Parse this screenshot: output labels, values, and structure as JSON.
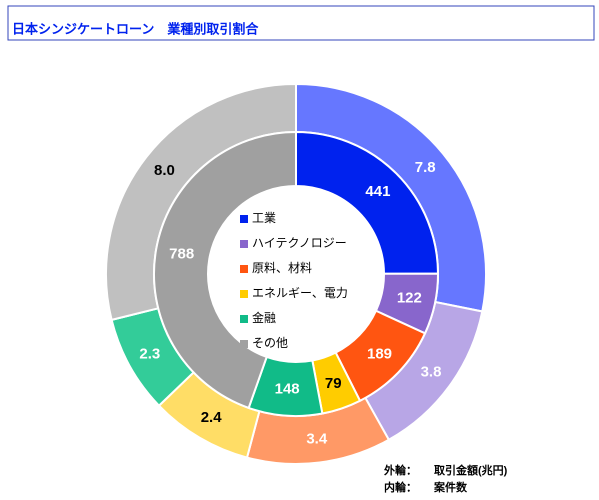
{
  "chart_data": {
    "type": "donut",
    "title": "日本シンジケートローン　業種別取引割合",
    "categories": [
      "工業",
      "ハイテクノロジー",
      "原料、材料",
      "エネルギー、電力",
      "金融",
      "その他"
    ],
    "series": [
      {
        "name": "外輪：",
        "measure": "取引金額(兆円)",
        "ring": "outer",
        "values": [
          7.8,
          3.8,
          3.4,
          2.4,
          2.3,
          8.0
        ],
        "value_labels": [
          "7.8",
          "3.8",
          "3.4",
          "2.4",
          "2.3",
          "8.0"
        ],
        "colors": [
          "#6677ff",
          "#b8a6e6",
          "#ff9966",
          "#ffdd66",
          "#33cc99",
          "#c0c0c0"
        ],
        "label_colors": [
          "#ffffff",
          "#ffffff",
          "#ffffff",
          "#000000",
          "#ffffff",
          "#000000"
        ]
      },
      {
        "name": "内輪：",
        "measure": "案件数",
        "ring": "inner",
        "values": [
          441,
          122,
          189,
          79,
          148,
          788
        ],
        "colors": [
          "#0022ee",
          "#8866cc",
          "#ff5511",
          "#ffcc00",
          "#11bb88",
          "#a0a0a0"
        ],
        "label_colors": [
          "#ffffff",
          "#ffffff",
          "#ffffff",
          "#000000",
          "#ffffff",
          "#ffffff"
        ]
      }
    ],
    "legend_colors_from": "inner"
  }
}
